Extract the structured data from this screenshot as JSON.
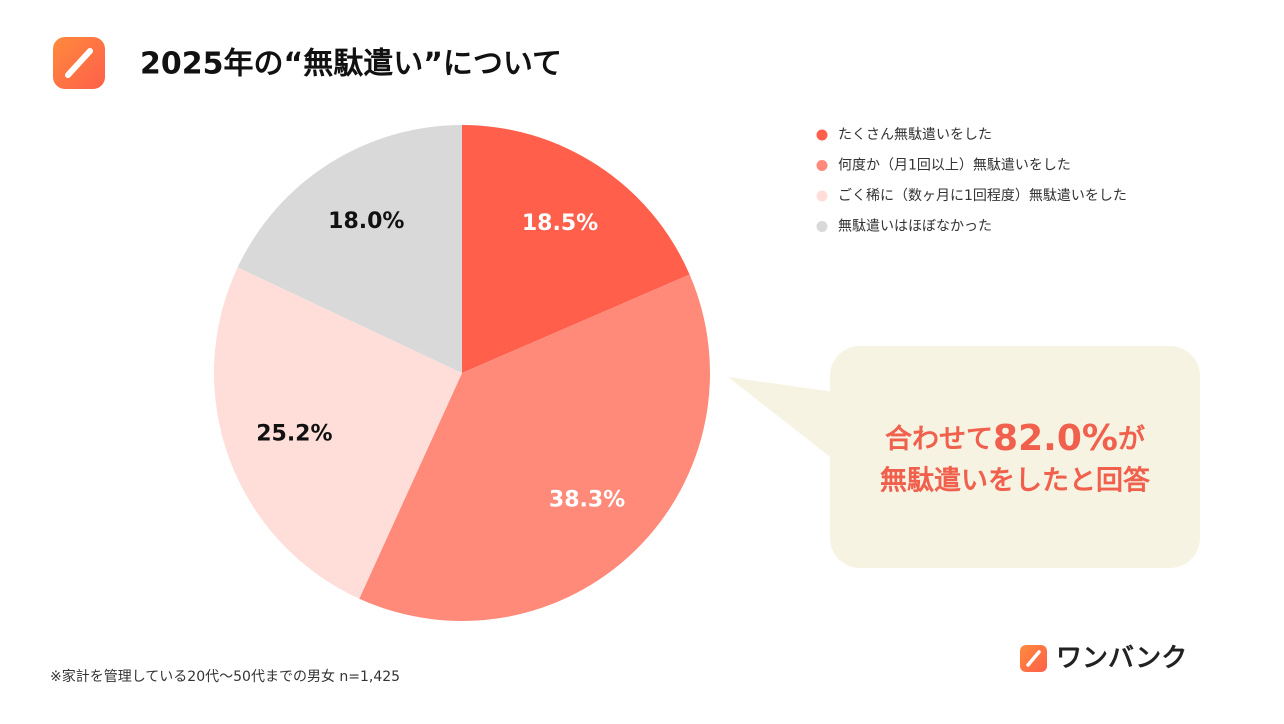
{
  "chart_data": {
    "type": "pie",
    "title": "2025年の“無駄遣い”について",
    "categories": [
      "たくさん無駄遣いをした",
      "何度か（月1回以上）無駄遣いをした",
      "ごく稀に（数ヶ月に1回程度）無駄遣いをした",
      "無駄遣いはほぼなかった"
    ],
    "values": [
      18.5,
      38.3,
      25.2,
      18.0
    ],
    "value_labels": [
      "18.5%",
      "38.3%",
      "25.2%",
      "18.0%"
    ],
    "colors": [
      "#ff5f4b",
      "#ff8a7a",
      "#ffdeda",
      "#d9d9d9"
    ],
    "label_colors": [
      "#ffffff",
      "#ffffff",
      "#111111",
      "#111111"
    ],
    "legend": "top-right",
    "annotation": {
      "lines": [
        [
          "合わせて",
          "82.0%",
          "が"
        ],
        [
          "無駄遣いをしたと回答"
        ]
      ]
    },
    "note": "※家計を管理している20代〜50代までの男女 n=1,425"
  },
  "brand": "ワンバンク"
}
